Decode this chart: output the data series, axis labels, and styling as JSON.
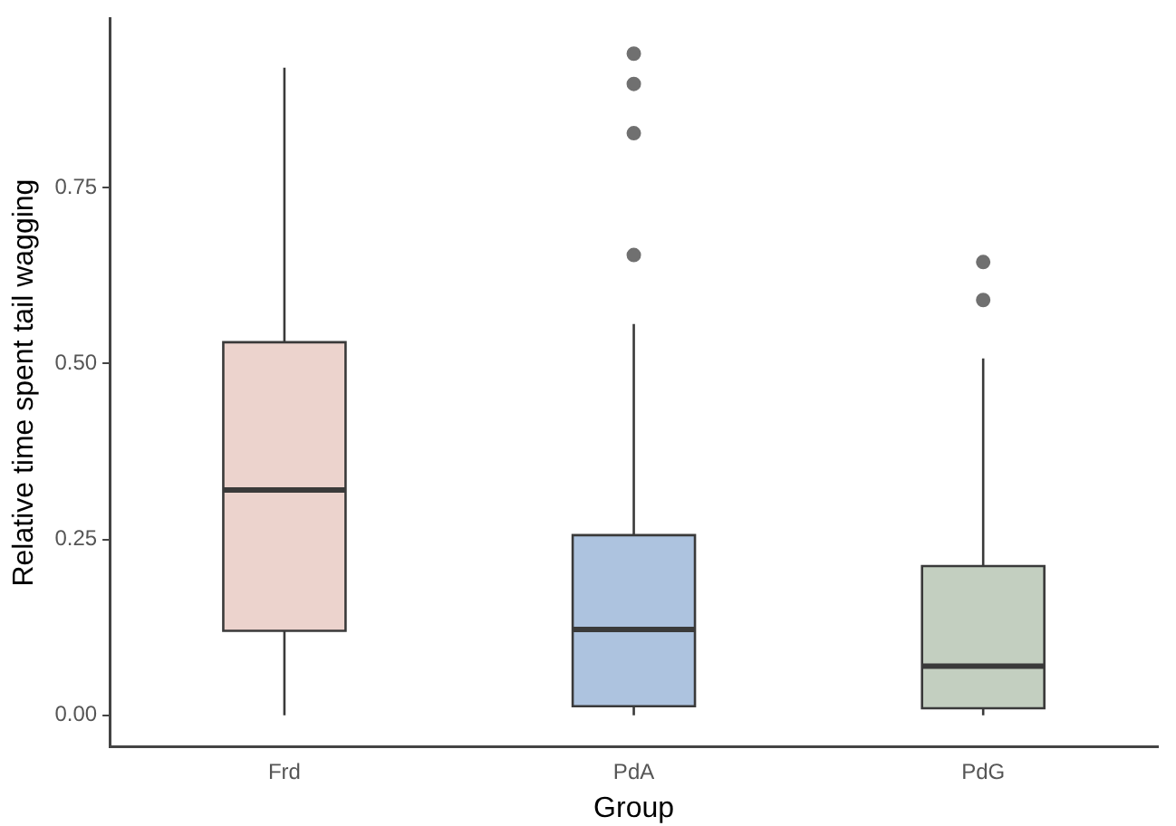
{
  "chart_data": {
    "type": "box",
    "xlabel": "Group",
    "ylabel": "Relative time spent tail wagging",
    "categories": [
      "Frd",
      "PdA",
      "PdG"
    ],
    "colors": [
      "#ecd3cd",
      "#adc3df",
      "#c3cfc0"
    ],
    "boxes": [
      {
        "low": 0,
        "q1": 0.12,
        "median": 0.32,
        "q3": 0.53,
        "high": 0.92
      },
      {
        "low": 0,
        "q1": 0.013,
        "median": 0.122,
        "q3": 0.256,
        "high": 0.556,
        "outliers": [
          0.94,
          0.897,
          0.827,
          0.654
        ]
      },
      {
        "low": 0,
        "q1": 0.01,
        "median": 0.07,
        "q3": 0.212,
        "high": 0.507,
        "outliers": [
          0.644,
          0.59
        ]
      }
    ],
    "ylim": [
      -0.045,
      0.99
    ],
    "yticks": [
      {
        "value": 0,
        "label": "0.00"
      },
      {
        "value": 0.25,
        "label": "0.25"
      },
      {
        "value": 0.5,
        "label": "0.50"
      },
      {
        "value": 0.75,
        "label": "0.75"
      }
    ],
    "grid": false,
    "legend": false
  }
}
